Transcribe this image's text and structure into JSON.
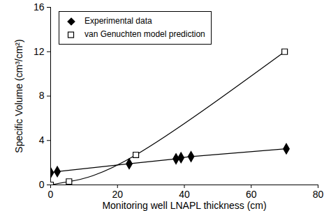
{
  "chart_data": {
    "type": "scatter",
    "x_label": "Monitoring well LNAPL thickness (cm)",
    "y_label": "Specific Volume (cm³/cm²)",
    "xlim": [
      0,
      80
    ],
    "xticks": [
      0,
      20,
      40,
      60,
      80
    ],
    "ylim": [
      0,
      16
    ],
    "yticks": [
      0,
      4,
      8,
      12,
      16
    ],
    "legend": "top-left",
    "series": [
      {
        "name": "Experimental data",
        "color": "#000000",
        "marker": "diamond",
        "line_style": "solid",
        "x": [
          0,
          2,
          23.5,
          37.5,
          39,
          42,
          70.5
        ],
        "values": [
          1.1,
          1.2,
          1.9,
          2.35,
          2.45,
          2.55,
          3.25
        ]
      },
      {
        "name": "van Genuchten model prediction",
        "color": "#000000",
        "marker": "square-open",
        "line_style": "smooth",
        "x": [
          0,
          5.5,
          25.5,
          70
        ],
        "values": [
          0,
          0.3,
          2.7,
          12.0
        ]
      }
    ]
  }
}
